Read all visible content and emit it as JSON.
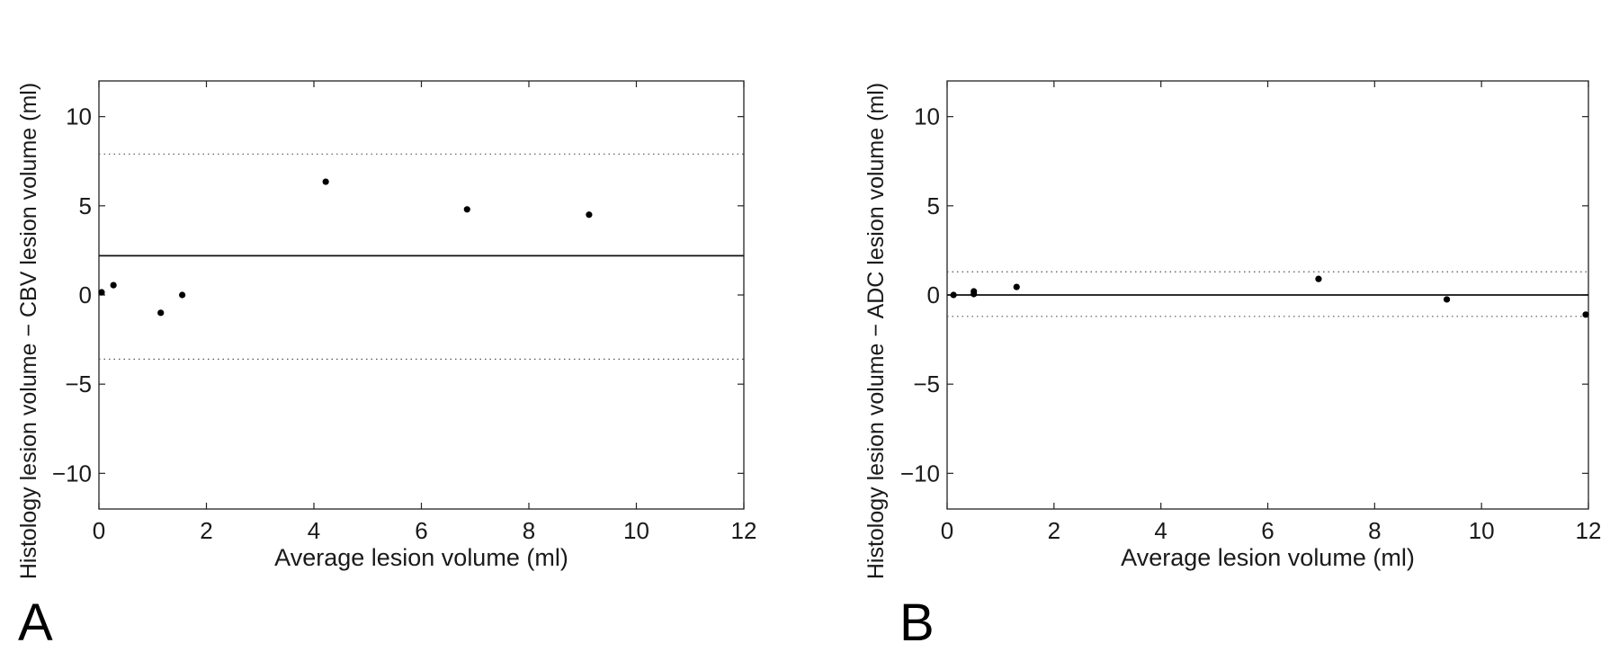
{
  "chart_data": [
    {
      "type": "scatter",
      "panel_label": "A",
      "xlabel": "Average lesion volume (ml)",
      "ylabel": "Histology lesion volume − CBV lesion volume (ml)",
      "xlim": [
        0,
        12
      ],
      "ylim": [
        -12,
        12
      ],
      "xticks": [
        0,
        2,
        4,
        6,
        8,
        10,
        12
      ],
      "yticks": [
        -10,
        -5,
        0,
        5,
        10
      ],
      "xtick_labels": [
        "0",
        "2",
        "4",
        "6",
        "8",
        "10",
        "12"
      ],
      "ytick_labels": [
        "−10",
        "−5",
        "0",
        "5",
        "10"
      ],
      "mean_line": 2.2,
      "limits_of_agreement": [
        7.9,
        -3.6
      ],
      "points": [
        {
          "x": 0.05,
          "y": 0.15
        },
        {
          "x": 0.27,
          "y": 0.55
        },
        {
          "x": 1.15,
          "y": -1.0
        },
        {
          "x": 1.55,
          "y": 0.0
        },
        {
          "x": 4.22,
          "y": 6.35
        },
        {
          "x": 6.85,
          "y": 4.8
        },
        {
          "x": 9.12,
          "y": 4.5
        }
      ]
    },
    {
      "type": "scatter",
      "panel_label": "B",
      "xlabel": "Average lesion volume (ml)",
      "ylabel": "Histology lesion volume − ADC lesion volume (ml)",
      "xlim": [
        0,
        12
      ],
      "ylim": [
        -12,
        12
      ],
      "xticks": [
        0,
        2,
        4,
        6,
        8,
        10,
        12
      ],
      "yticks": [
        -10,
        -5,
        0,
        5,
        10
      ],
      "xtick_labels": [
        "0",
        "2",
        "4",
        "6",
        "8",
        "10",
        "12"
      ],
      "ytick_labels": [
        "−10",
        "−5",
        "0",
        "5",
        "10"
      ],
      "mean_line": 0.0,
      "limits_of_agreement": [
        1.3,
        -1.2
      ],
      "points": [
        {
          "x": 0.12,
          "y": 0.0
        },
        {
          "x": 0.5,
          "y": 0.05
        },
        {
          "x": 0.5,
          "y": 0.2
        },
        {
          "x": 1.3,
          "y": 0.45
        },
        {
          "x": 6.95,
          "y": 0.9
        },
        {
          "x": 9.35,
          "y": -0.25
        },
        {
          "x": 11.95,
          "y": -1.1
        }
      ]
    }
  ]
}
